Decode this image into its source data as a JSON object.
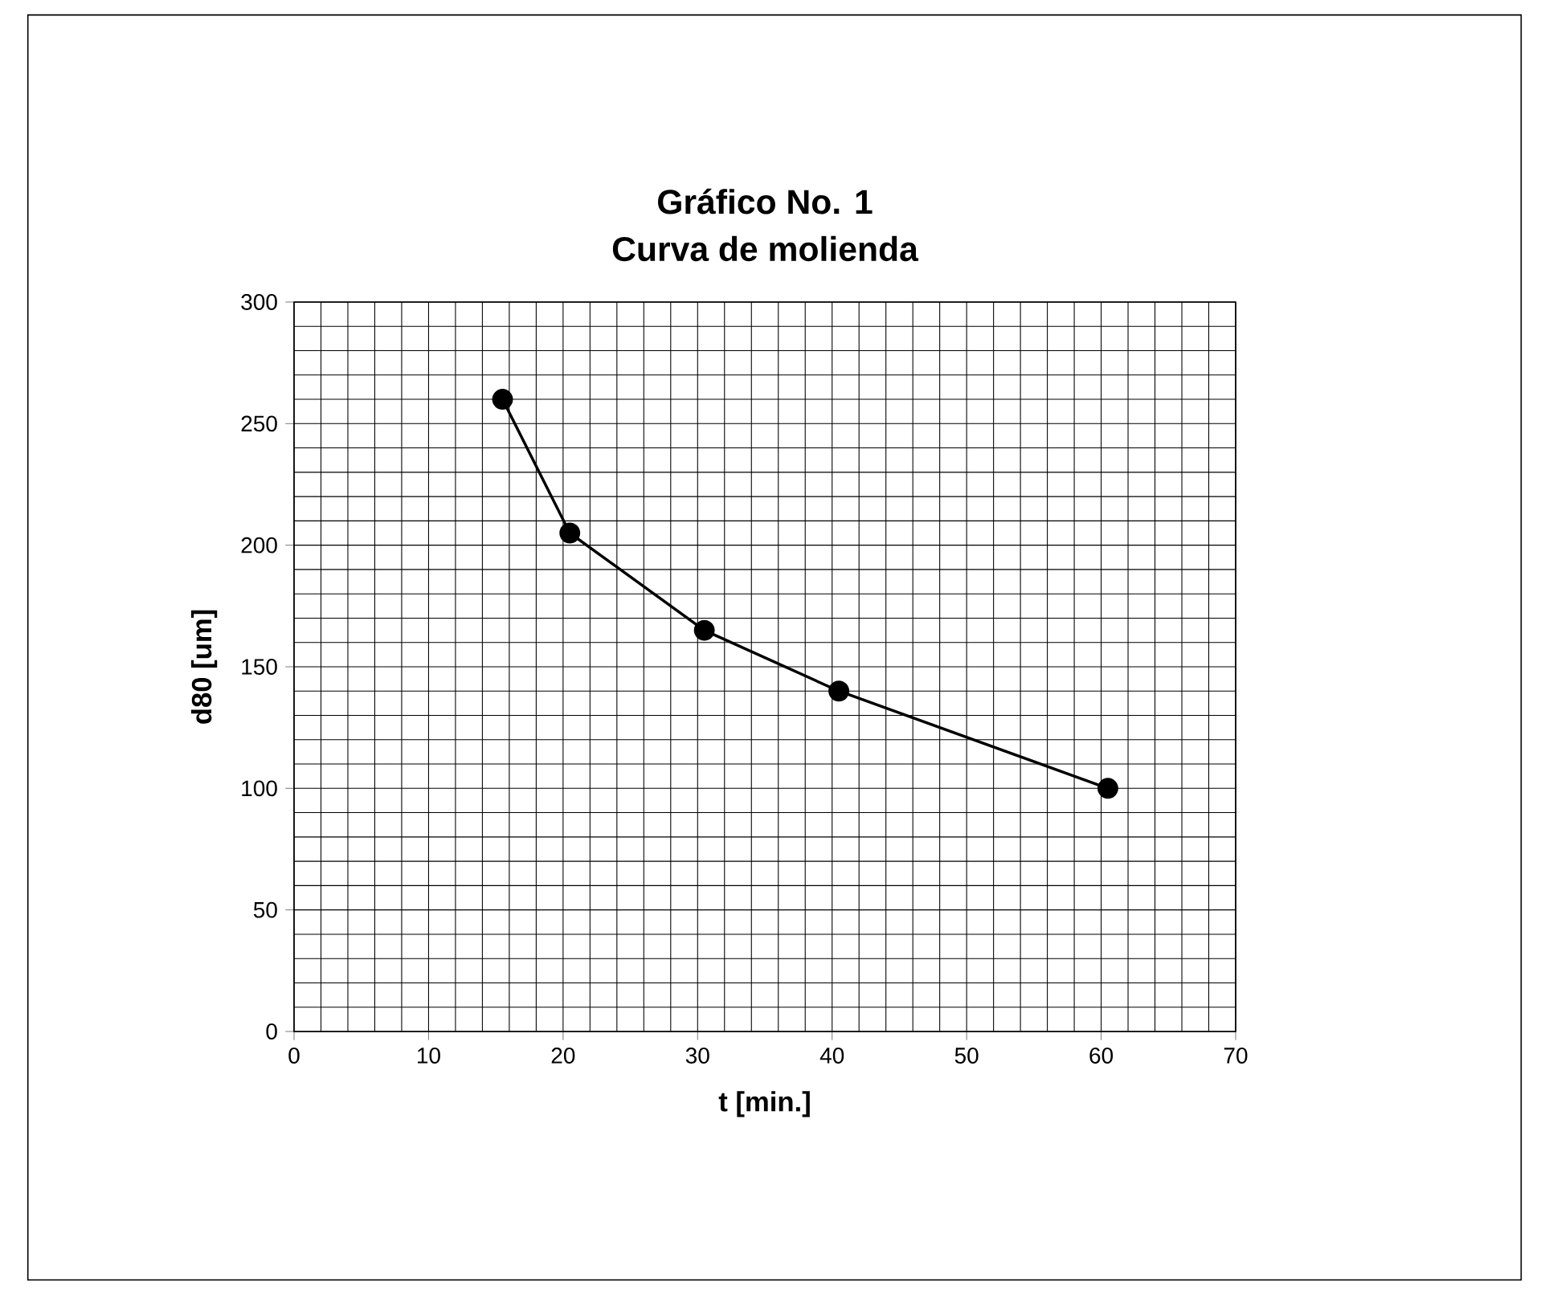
{
  "chart_data": {
    "type": "line",
    "title": "Gráfico No. 1\nCurva de molienda",
    "xlabel": "t [min.]",
    "ylabel": "d80  [um]",
    "x": [
      15.5,
      20.5,
      30.5,
      40.5,
      60.5
    ],
    "series": [
      {
        "color": "#000000",
        "values": [
          260,
          205,
          165,
          140,
          100
        ]
      }
    ],
    "xlim": [
      0,
      70
    ],
    "ylim": [
      0,
      300
    ],
    "xticks": [
      0,
      10,
      20,
      30,
      40,
      50,
      60,
      70
    ],
    "yticks": [
      0,
      50,
      100,
      150,
      200,
      250,
      300
    ],
    "grid": true,
    "marker": "circle",
    "line_style": "solid"
  }
}
